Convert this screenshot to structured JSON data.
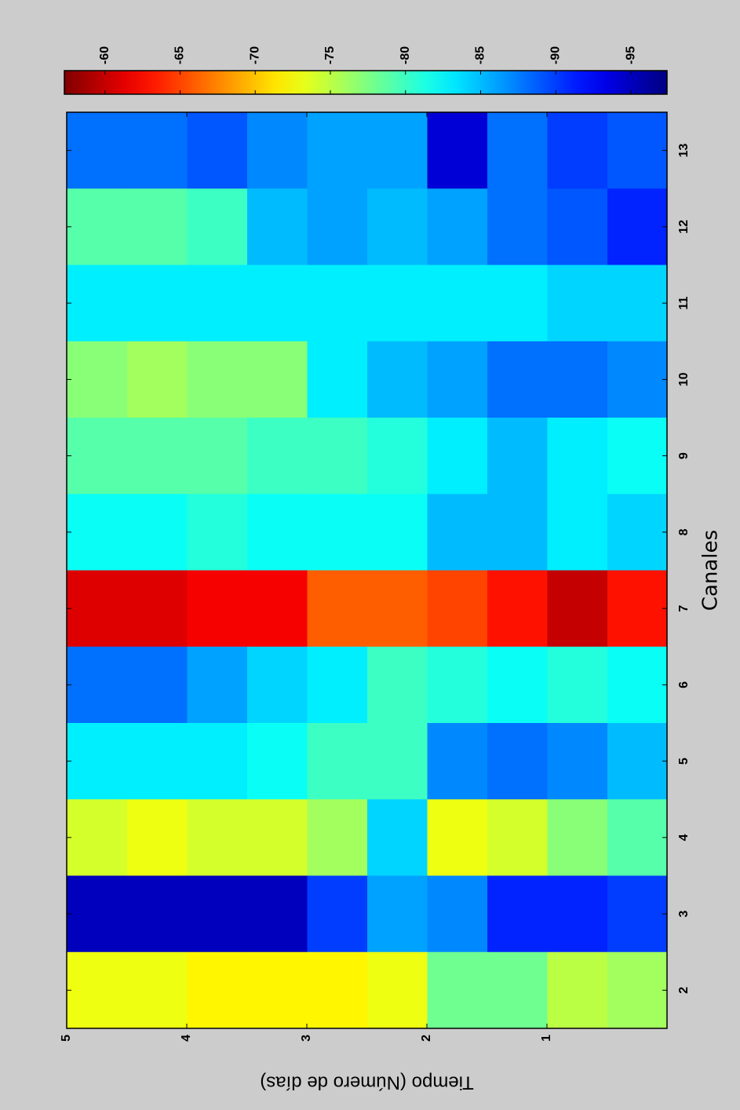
{
  "chart_data": {
    "type": "heatmap",
    "xlabel": "Canales",
    "ylabel": "Tiempo (Número de días)",
    "x": [
      2,
      3,
      4,
      5,
      6,
      7,
      8,
      9,
      10,
      11,
      12,
      13
    ],
    "xlim": [
      1.5,
      13.5
    ],
    "xticks": [
      2,
      3,
      4,
      5,
      6,
      7,
      8,
      9,
      10,
      11,
      12,
      13
    ],
    "ybins": [
      0,
      0.5,
      1,
      1.5,
      2,
      2.5,
      3,
      3.5,
      4,
      4.5,
      5
    ],
    "ylim": [
      0,
      5
    ],
    "yticks": [
      1,
      2,
      3,
      4,
      5
    ],
    "z": [
      [
        -76,
        -75,
        -78,
        -78,
        -73,
        -72,
        -72,
        -72,
        -73,
        -73
      ],
      [
        -90,
        -91,
        -91,
        -87,
        -86,
        -90,
        -95,
        -95,
        -95,
        -95
      ],
      [
        -79,
        -77,
        -74,
        -73,
        -84,
        -76,
        -74,
        -74,
        -73,
        -74
      ],
      [
        -85,
        -87,
        -88,
        -87,
        -80,
        -80,
        -82,
        -83,
        -83,
        -83
      ],
      [
        -82,
        -81,
        -82,
        -81,
        -80,
        -83,
        -84,
        -86,
        -88,
        -88
      ],
      [
        -63,
        -60,
        -63,
        -65,
        -66,
        -66,
        -62,
        -62,
        -61,
        -61
      ],
      [
        -84,
        -83,
        -85,
        -85,
        -82,
        -82,
        -82,
        -81,
        -82,
        -82
      ],
      [
        -82,
        -83,
        -85,
        -83,
        -81,
        -80,
        -80,
        -79,
        -79,
        -79
      ],
      [
        -87,
        -88,
        -88,
        -86,
        -85,
        -83,
        -77,
        -77,
        -76,
        -77
      ],
      [
        -84,
        -84,
        -83,
        -83,
        -83,
        -83,
        -83,
        -83,
        -83,
        -83
      ],
      [
        -91,
        -89,
        -88,
        -86,
        -85,
        -86,
        -85,
        -80,
        -79,
        -79
      ],
      [
        -89,
        -90,
        -88,
        -94,
        -86,
        -86,
        -87,
        -89,
        -88,
        -88
      ]
    ],
    "colormap": "jet",
    "clim": [
      -97.4,
      -57.3
    ],
    "cticks": [
      -95,
      -90,
      -85,
      -80,
      -75,
      -70,
      -65,
      -60
    ]
  }
}
